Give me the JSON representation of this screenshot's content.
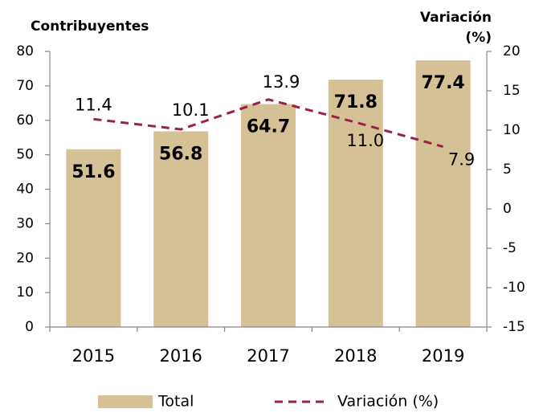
{
  "chart_data": {
    "type": "bar",
    "y_label": "Contribuyentes",
    "y2_label": [
      "Variación",
      "(%)"
    ],
    "categories": [
      "2015",
      "2016",
      "2017",
      "2018",
      "2019"
    ],
    "series": [
      {
        "name": "Total",
        "type": "bar",
        "color": "#d5c196",
        "values": [
          51.6,
          56.8,
          64.7,
          71.8,
          77.4
        ]
      },
      {
        "name": "Variación (%)",
        "type": "line",
        "axis": "y2",
        "color": "#9b2247",
        "dashed": true,
        "values": [
          11.4,
          10.1,
          13.9,
          11.0,
          7.9
        ],
        "value_labels": [
          "11.4",
          "10.1",
          "13.9",
          "11.0",
          "7.9"
        ]
      }
    ],
    "ylim": [
      0,
      80
    ],
    "yticks": [
      0,
      10,
      20,
      30,
      40,
      50,
      60,
      70,
      80
    ],
    "y2lim": [
      -15,
      20
    ],
    "y2ticks": [
      -15,
      -10,
      -5,
      0,
      5,
      10,
      15,
      20
    ],
    "grid": false
  }
}
